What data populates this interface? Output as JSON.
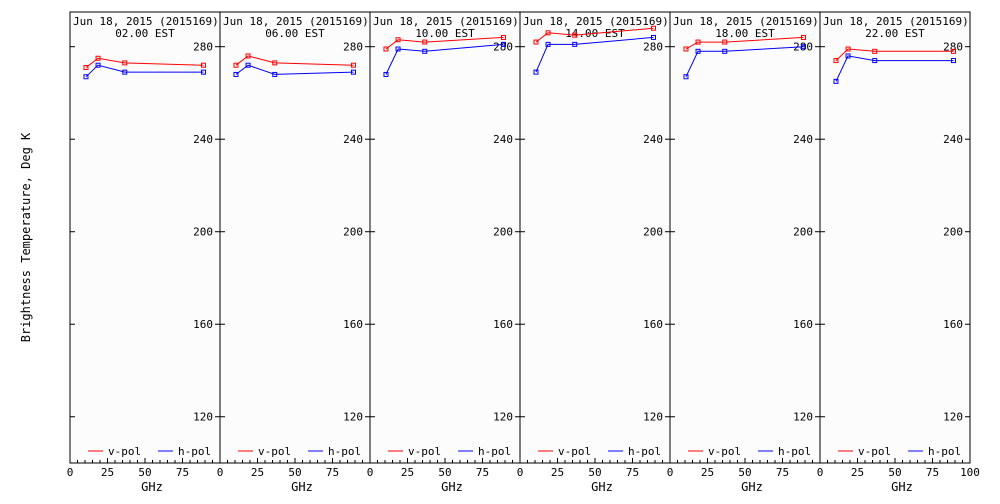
{
  "chart_data": {
    "type": "line",
    "ylabel": "Brightness Temperature, Deg K",
    "xlabel": "GHz",
    "xlim": [
      0,
      100
    ],
    "ylim": [
      100,
      295
    ],
    "x_ticks": [
      0,
      25,
      50,
      75,
      100
    ],
    "x_tick_labels": [
      "0",
      "25",
      "50",
      "75",
      "100"
    ],
    "y_ticks": [
      120,
      160,
      200,
      240,
      280
    ],
    "y_tick_labels": [
      "120",
      "160",
      "200",
      "240",
      "280"
    ],
    "legend": [
      {
        "name": "v-pol",
        "color": "#ff0000"
      },
      {
        "name": "h-pol",
        "color": "#0000ff"
      }
    ],
    "grid": false,
    "legend_placement": "bottom",
    "panels": [
      {
        "title_line1": "Jun 18, 2015 (2015169)",
        "title_line2": "02.00 EST",
        "x": [
          10.65,
          18.7,
          36.5,
          89
        ],
        "series": [
          {
            "name": "v-pol",
            "values": [
              271,
              275,
              273,
              272
            ]
          },
          {
            "name": "h-pol",
            "values": [
              267,
              272,
              269,
              269
            ]
          }
        ]
      },
      {
        "title_line1": "Jun 18, 2015 (2015169)",
        "title_line2": "06.00 EST",
        "x": [
          10.65,
          18.7,
          36.5,
          89
        ],
        "series": [
          {
            "name": "v-pol",
            "values": [
              272,
              276,
              273,
              272
            ]
          },
          {
            "name": "h-pol",
            "values": [
              268,
              272,
              268,
              269
            ]
          }
        ]
      },
      {
        "title_line1": "Jun 18, 2015 (2015169)",
        "title_line2": "10.00 EST",
        "x": [
          10.65,
          18.7,
          36.5,
          89
        ],
        "series": [
          {
            "name": "v-pol",
            "values": [
              279,
              283,
              282,
              284
            ]
          },
          {
            "name": "h-pol",
            "values": [
              268,
              279,
              278,
              281
            ]
          }
        ]
      },
      {
        "title_line1": "Jun 18, 2015 (2015169)",
        "title_line2": "14.00 EST",
        "x": [
          10.65,
          18.7,
          36.5,
          89
        ],
        "series": [
          {
            "name": "v-pol",
            "values": [
              282,
              286,
              285,
              288
            ]
          },
          {
            "name": "h-pol",
            "values": [
              269,
              281,
              281,
              284
            ]
          }
        ]
      },
      {
        "title_line1": "Jun 18, 2015 (2015169)",
        "title_line2": "18.00 EST",
        "x": [
          10.65,
          18.7,
          36.5,
          89
        ],
        "series": [
          {
            "name": "v-pol",
            "values": [
              279,
              282,
              282,
              284
            ]
          },
          {
            "name": "h-pol",
            "values": [
              267,
              278,
              278,
              280
            ]
          }
        ]
      },
      {
        "title_line1": "Jun 18, 2015 (2015169)",
        "title_line2": "22.00 EST",
        "x": [
          10.65,
          18.7,
          36.5,
          89
        ],
        "series": [
          {
            "name": "v-pol",
            "values": [
              274,
              279,
              278,
              278
            ]
          },
          {
            "name": "h-pol",
            "values": [
              265,
              276,
              274,
              274
            ]
          }
        ]
      }
    ]
  }
}
